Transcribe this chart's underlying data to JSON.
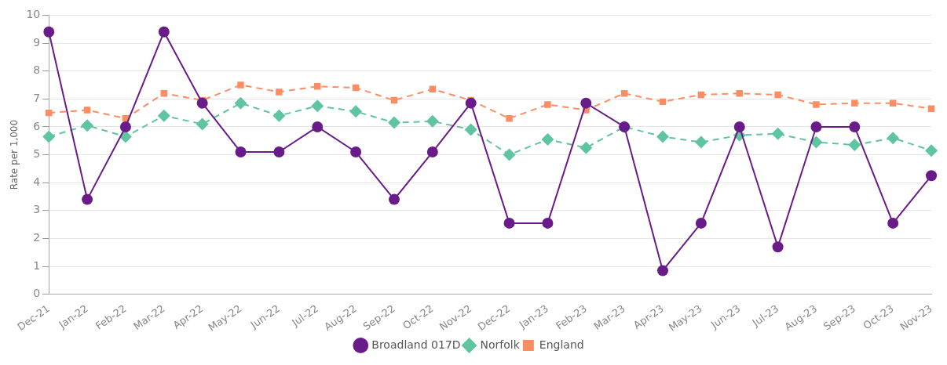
{
  "chart_data": {
    "type": "line",
    "ylabel": "Rate per 1,000",
    "categories": [
      "Dec-21",
      "Jan-22",
      "Feb-22",
      "Mar-22",
      "Apr-22",
      "May-22",
      "Jun-22",
      "Jul-22",
      "Aug-22",
      "Sep-22",
      "Oct-22",
      "Nov-22",
      "Dec-22",
      "Jan-23",
      "Feb-23",
      "Mar-23",
      "Apr-23",
      "May-23",
      "Jun-23",
      "Jul-23",
      "Aug-23",
      "Sep-23",
      "Oct-23",
      "Nov-23"
    ],
    "series": [
      {
        "name": "Broadland 017D",
        "color": "#6a1b8a",
        "marker": "circle",
        "line_style": "solid",
        "values": [
          9.4,
          3.4,
          6.0,
          9.4,
          6.85,
          5.1,
          5.1,
          6.0,
          5.1,
          3.4,
          5.1,
          6.85,
          2.55,
          2.55,
          6.85,
          6.0,
          0.85,
          2.55,
          6.0,
          1.7,
          6.0,
          6.0,
          2.55,
          4.25
        ]
      },
      {
        "name": "Norfolk",
        "color": "#5fc4a0",
        "marker": "diamond",
        "line_style": "dashed",
        "values": [
          5.65,
          6.05,
          5.65,
          6.4,
          6.1,
          6.85,
          6.4,
          6.75,
          6.55,
          6.15,
          6.2,
          5.9,
          5.0,
          5.55,
          5.25,
          6.0,
          5.65,
          5.45,
          5.7,
          5.75,
          5.45,
          5.35,
          5.6,
          5.15
        ]
      },
      {
        "name": "England",
        "color": "#fc8d62",
        "marker": "square",
        "line_style": "dashed",
        "values": [
          6.5,
          6.6,
          6.3,
          7.2,
          6.95,
          7.5,
          7.25,
          7.45,
          7.4,
          6.95,
          7.35,
          6.95,
          6.3,
          6.8,
          6.6,
          7.2,
          6.9,
          7.15,
          7.2,
          7.15,
          6.8,
          6.85,
          6.85,
          6.65
        ]
      }
    ],
    "ylim": [
      0,
      10
    ],
    "yticks": [
      0,
      1,
      2,
      3,
      4,
      5,
      6,
      7,
      8,
      9,
      10
    ],
    "grid": "y",
    "legend": "bottom"
  }
}
